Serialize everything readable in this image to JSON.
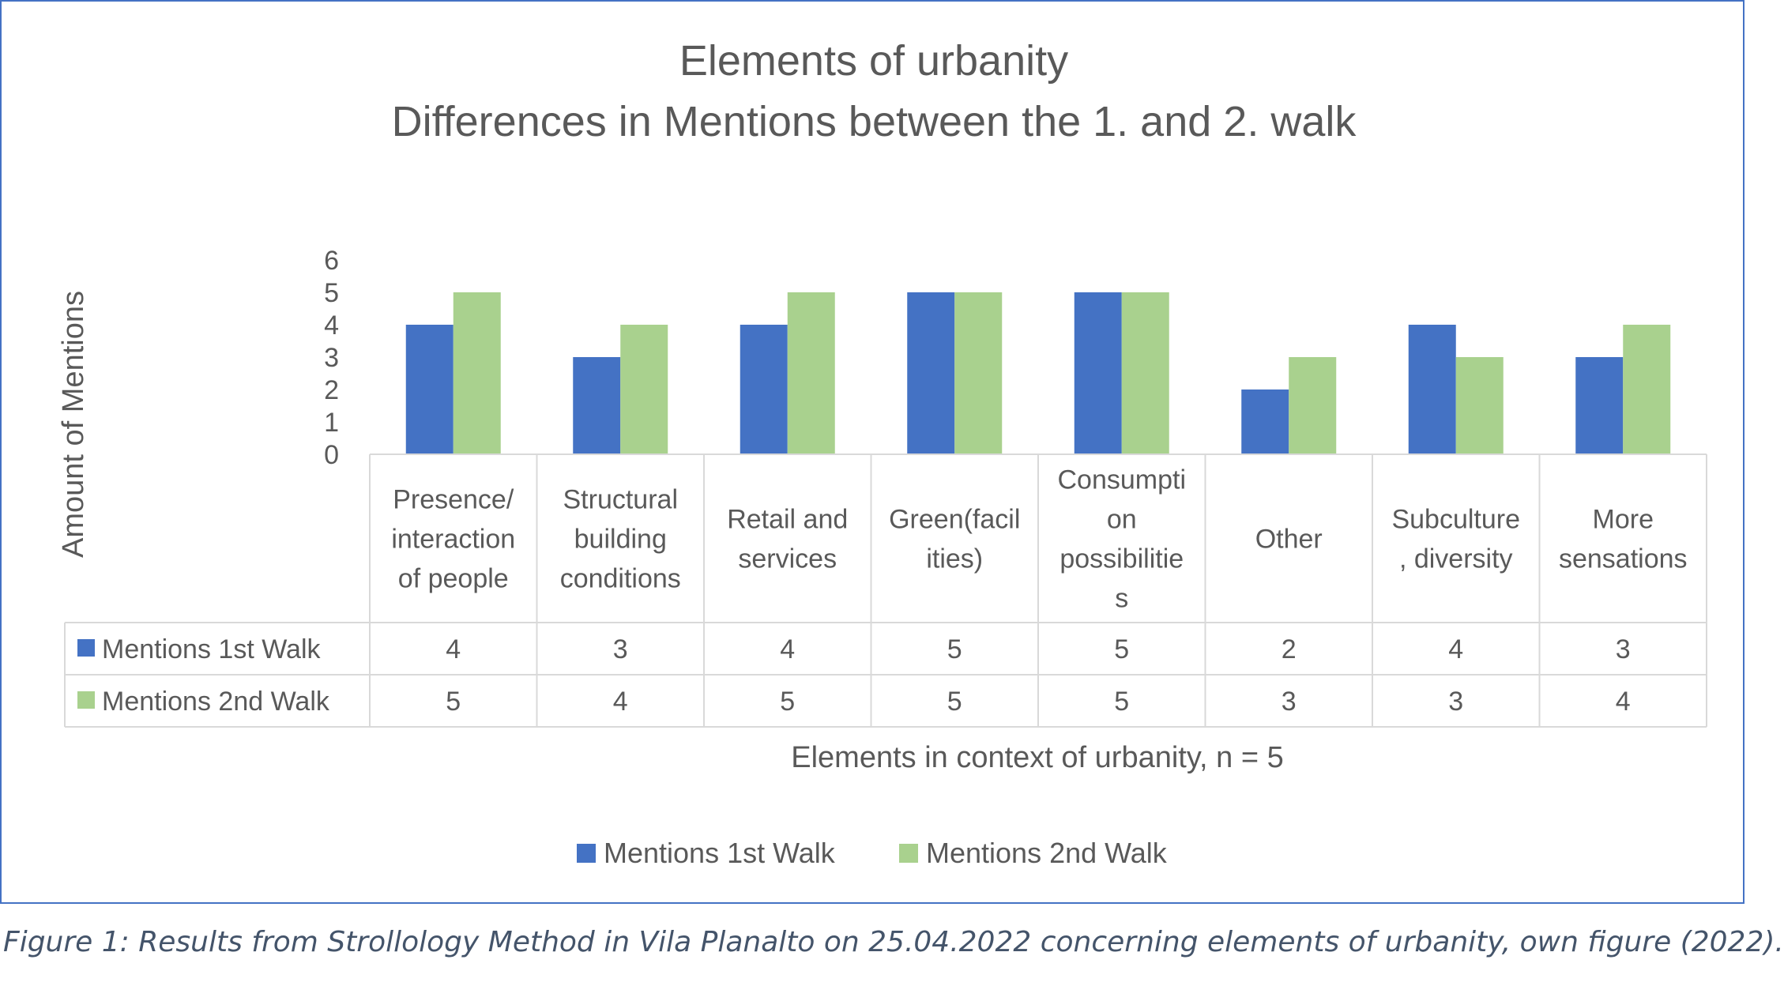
{
  "chart_data": {
    "type": "bar",
    "title": "Elements of urbanity",
    "subtitle": "Differences in Mentions between the 1. and 2. walk",
    "xlabel": "Elements in context of urbanity, n = 5",
    "ylabel": "Amount of Mentions",
    "ylim": [
      0,
      6
    ],
    "yticks": [
      "0",
      "1",
      "2",
      "3",
      "4",
      "5",
      "6"
    ],
    "grid": false,
    "legend_position": "bottom",
    "data_table": true,
    "categories": [
      [
        "Presence/",
        "interaction",
        "of people"
      ],
      [
        "Structural",
        "building",
        "conditions"
      ],
      [
        "Retail and",
        "services"
      ],
      [
        "Green(facil",
        "ities)"
      ],
      [
        "Consumpti",
        "on",
        "possibilitie",
        "s"
      ],
      [
        "Other"
      ],
      [
        "Subculture",
        ", diversity"
      ],
      [
        "More",
        "sensations"
      ]
    ],
    "series": [
      {
        "name": "Mentions 1st Walk",
        "color": "#4472c4",
        "values": [
          4,
          3,
          4,
          5,
          5,
          2,
          4,
          3
        ]
      },
      {
        "name": "Mentions 2nd Walk",
        "color": "#a9d18e",
        "values": [
          5,
          4,
          5,
          5,
          5,
          3,
          3,
          4
        ]
      }
    ]
  },
  "caption": "Figure 1: Results from Strollology Method in Vila Planalto on 25.04.2022 concerning elements of urbanity, own figure (2022)."
}
